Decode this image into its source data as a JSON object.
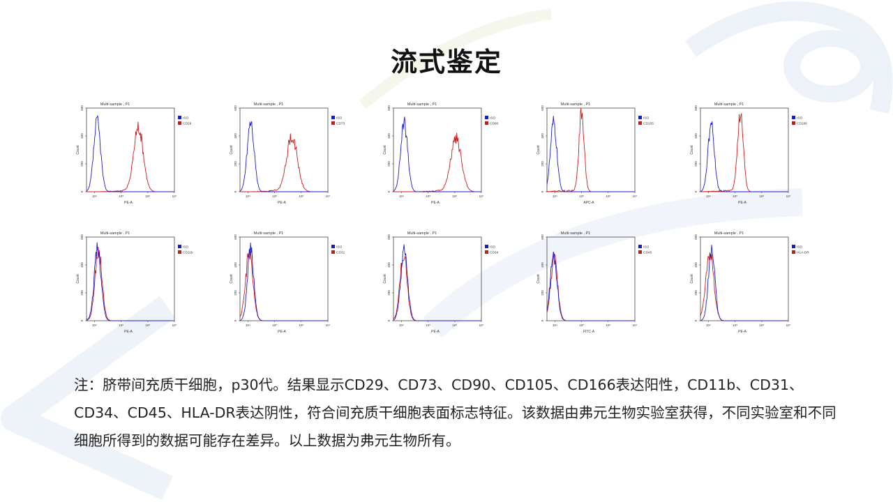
{
  "title": "流式鉴定",
  "note": "注：脐带间充质干细胞，p30代。结果显示CD29、CD73、CD90、CD105、CD166表达阳性，CD11b、CD31、CD34、CD45、HLA-DR表达阴性，符合间充质干细胞表面标志特征。该数据由弗元生物实验室获得，不同实验室和不同细胞所得到的数据可能存在差异。以上数据为弗元生物所有。",
  "colors": {
    "iso": "#1a1acc",
    "marker": "#cc1a1a",
    "watermark": "#e8edf7"
  },
  "chart_data": [
    {
      "type": "histogram",
      "title": "Multi-sample , P1",
      "xlabel": "PE-A",
      "ylabel": "Count",
      "ylim": [
        0,
        600
      ],
      "yticks": [
        "0",
        "200",
        "400",
        "600"
      ],
      "xticks": [
        "10⁴",
        "10⁵",
        "10⁶",
        "10⁷"
      ],
      "xlim_log10": [
        3.7,
        7.0
      ],
      "legend": "top-right",
      "series": [
        {
          "name": "ISO",
          "peak_log10": 4.1,
          "width": 0.13,
          "peak_count": 500
        },
        {
          "name": "CD29",
          "peak_log10": 5.65,
          "width": 0.18,
          "peak_count": 465
        }
      ]
    },
    {
      "type": "histogram",
      "title": "Multi-sample , P1",
      "xlabel": "PE-A",
      "ylabel": "Count",
      "ylim": [
        0,
        600
      ],
      "yticks": [
        "0",
        "200",
        "400",
        "600"
      ],
      "xticks": [
        "10⁴",
        "10⁵",
        "10⁶",
        "10⁷"
      ],
      "xlim_log10": [
        3.7,
        7.0
      ],
      "legend": "top-right",
      "series": [
        {
          "name": "ISO",
          "peak_log10": 4.1,
          "width": 0.13,
          "peak_count": 505
        },
        {
          "name": "CD73",
          "peak_log10": 5.65,
          "width": 0.2,
          "peak_count": 400
        }
      ]
    },
    {
      "type": "histogram",
      "title": "Multi-sample , P1",
      "xlabel": "PE-A",
      "ylabel": "Count",
      "ylim": [
        0,
        600
      ],
      "yticks": [
        "0",
        "200",
        "400",
        "600"
      ],
      "xticks": [
        "10⁴",
        "10⁵",
        "10⁶",
        "10⁷"
      ],
      "xlim_log10": [
        3.7,
        7.0
      ],
      "legend": "top-right",
      "series": [
        {
          "name": "ISO",
          "peak_log10": 4.1,
          "width": 0.13,
          "peak_count": 490
        },
        {
          "name": "CD90",
          "peak_log10": 6.05,
          "width": 0.2,
          "peak_count": 380
        }
      ]
    },
    {
      "type": "histogram",
      "title": "Multi-sample , P1",
      "xlabel": "APC-A",
      "ylabel": "Count",
      "ylim": [
        0,
        600
      ],
      "yticks": [
        "0",
        "200",
        "400",
        "600"
      ],
      "xticks": [
        "10⁴",
        "10⁵",
        "10⁶",
        "10⁷"
      ],
      "xlim_log10": [
        3.7,
        7.0
      ],
      "legend": "top-right",
      "series": [
        {
          "name": "ISO",
          "peak_log10": 3.95,
          "width": 0.12,
          "peak_count": 490
        },
        {
          "name": "CD105",
          "peak_log10": 5.0,
          "width": 0.1,
          "peak_count": 560
        }
      ]
    },
    {
      "type": "histogram",
      "title": "Multi-sample , P1",
      "xlabel": "PE-A",
      "ylabel": "Count",
      "ylim": [
        0,
        600
      ],
      "yticks": [
        "0",
        "200",
        "400",
        "600"
      ],
      "xticks": [
        "10⁴",
        "10⁵",
        "10⁶",
        "10⁷"
      ],
      "xlim_log10": [
        3.7,
        7.0
      ],
      "legend": "top-right",
      "series": [
        {
          "name": "ISO",
          "peak_log10": 4.1,
          "width": 0.12,
          "peak_count": 480
        },
        {
          "name": "CD166",
          "peak_log10": 5.2,
          "width": 0.11,
          "peak_count": 560
        }
      ]
    },
    {
      "type": "histogram",
      "title": "Multi-sample , P1",
      "xlabel": "PE-A",
      "ylabel": "Count",
      "ylim": [
        0,
        600
      ],
      "yticks": [
        "0",
        "200",
        "400",
        "600"
      ],
      "xticks": [
        "10⁴",
        "10⁵",
        "10⁶",
        "10⁷"
      ],
      "xlim_log10": [
        3.7,
        7.0
      ],
      "legend": "top-right",
      "series": [
        {
          "name": "ISO",
          "peak_log10": 4.12,
          "width": 0.13,
          "peak_count": 510
        },
        {
          "name": "CD11b",
          "peak_log10": 4.15,
          "width": 0.13,
          "peak_count": 500
        }
      ]
    },
    {
      "type": "histogram",
      "title": "Multi-sample , P1",
      "xlabel": "PE-A",
      "ylabel": "Count",
      "ylim": [
        0,
        600
      ],
      "yticks": [
        "0",
        "200",
        "400",
        "600"
      ],
      "xticks": [
        "10⁴",
        "10⁵",
        "10⁶",
        "10⁷"
      ],
      "xlim_log10": [
        3.7,
        7.0
      ],
      "legend": "top-right",
      "series": [
        {
          "name": "ISO",
          "peak_log10": 4.1,
          "width": 0.12,
          "peak_count": 500
        },
        {
          "name": "CD31",
          "peak_log10": 4.05,
          "width": 0.14,
          "peak_count": 480
        }
      ]
    },
    {
      "type": "histogram",
      "title": "Multi-sample , P1",
      "xlabel": "PE-A",
      "ylabel": "Count",
      "ylim": [
        0,
        600
      ],
      "yticks": [
        "0",
        "200",
        "400",
        "600"
      ],
      "xticks": [
        "10⁴",
        "10⁵",
        "10⁶",
        "10⁷"
      ],
      "xlim_log10": [
        3.7,
        7.0
      ],
      "legend": "top-right",
      "series": [
        {
          "name": "ISO",
          "peak_log10": 4.1,
          "width": 0.13,
          "peak_count": 500
        },
        {
          "name": "CD34",
          "peak_log10": 4.08,
          "width": 0.13,
          "peak_count": 490
        }
      ]
    },
    {
      "type": "histogram",
      "title": "Multi-sample , P1",
      "xlabel": "FITC-A",
      "ylabel": "Count",
      "ylim": [
        0,
        600
      ],
      "yticks": [
        "0",
        "200",
        "400",
        "600"
      ],
      "xticks": [
        "10⁴",
        "10⁵",
        "10⁶",
        "10⁷"
      ],
      "xlim_log10": [
        3.7,
        7.0
      ],
      "legend": "top-right",
      "series": [
        {
          "name": "ISO",
          "peak_log10": 3.95,
          "width": 0.13,
          "peak_count": 460
        },
        {
          "name": "CD45",
          "peak_log10": 3.97,
          "width": 0.13,
          "peak_count": 450
        }
      ]
    },
    {
      "type": "histogram",
      "title": "Multi-sample , P1",
      "xlabel": "PE-A",
      "ylabel": "Count",
      "ylim": [
        0,
        600
      ],
      "yticks": [
        "0",
        "200",
        "400",
        "600"
      ],
      "xticks": [
        "10⁴",
        "10⁵",
        "10⁶",
        "10⁷"
      ],
      "xlim_log10": [
        3.7,
        7.0
      ],
      "legend": "top-right",
      "series": [
        {
          "name": "ISO",
          "peak_log10": 4.12,
          "width": 0.12,
          "peak_count": 510
        },
        {
          "name": "HLA-DR",
          "peak_log10": 4.05,
          "width": 0.15,
          "peak_count": 480
        }
      ]
    }
  ]
}
